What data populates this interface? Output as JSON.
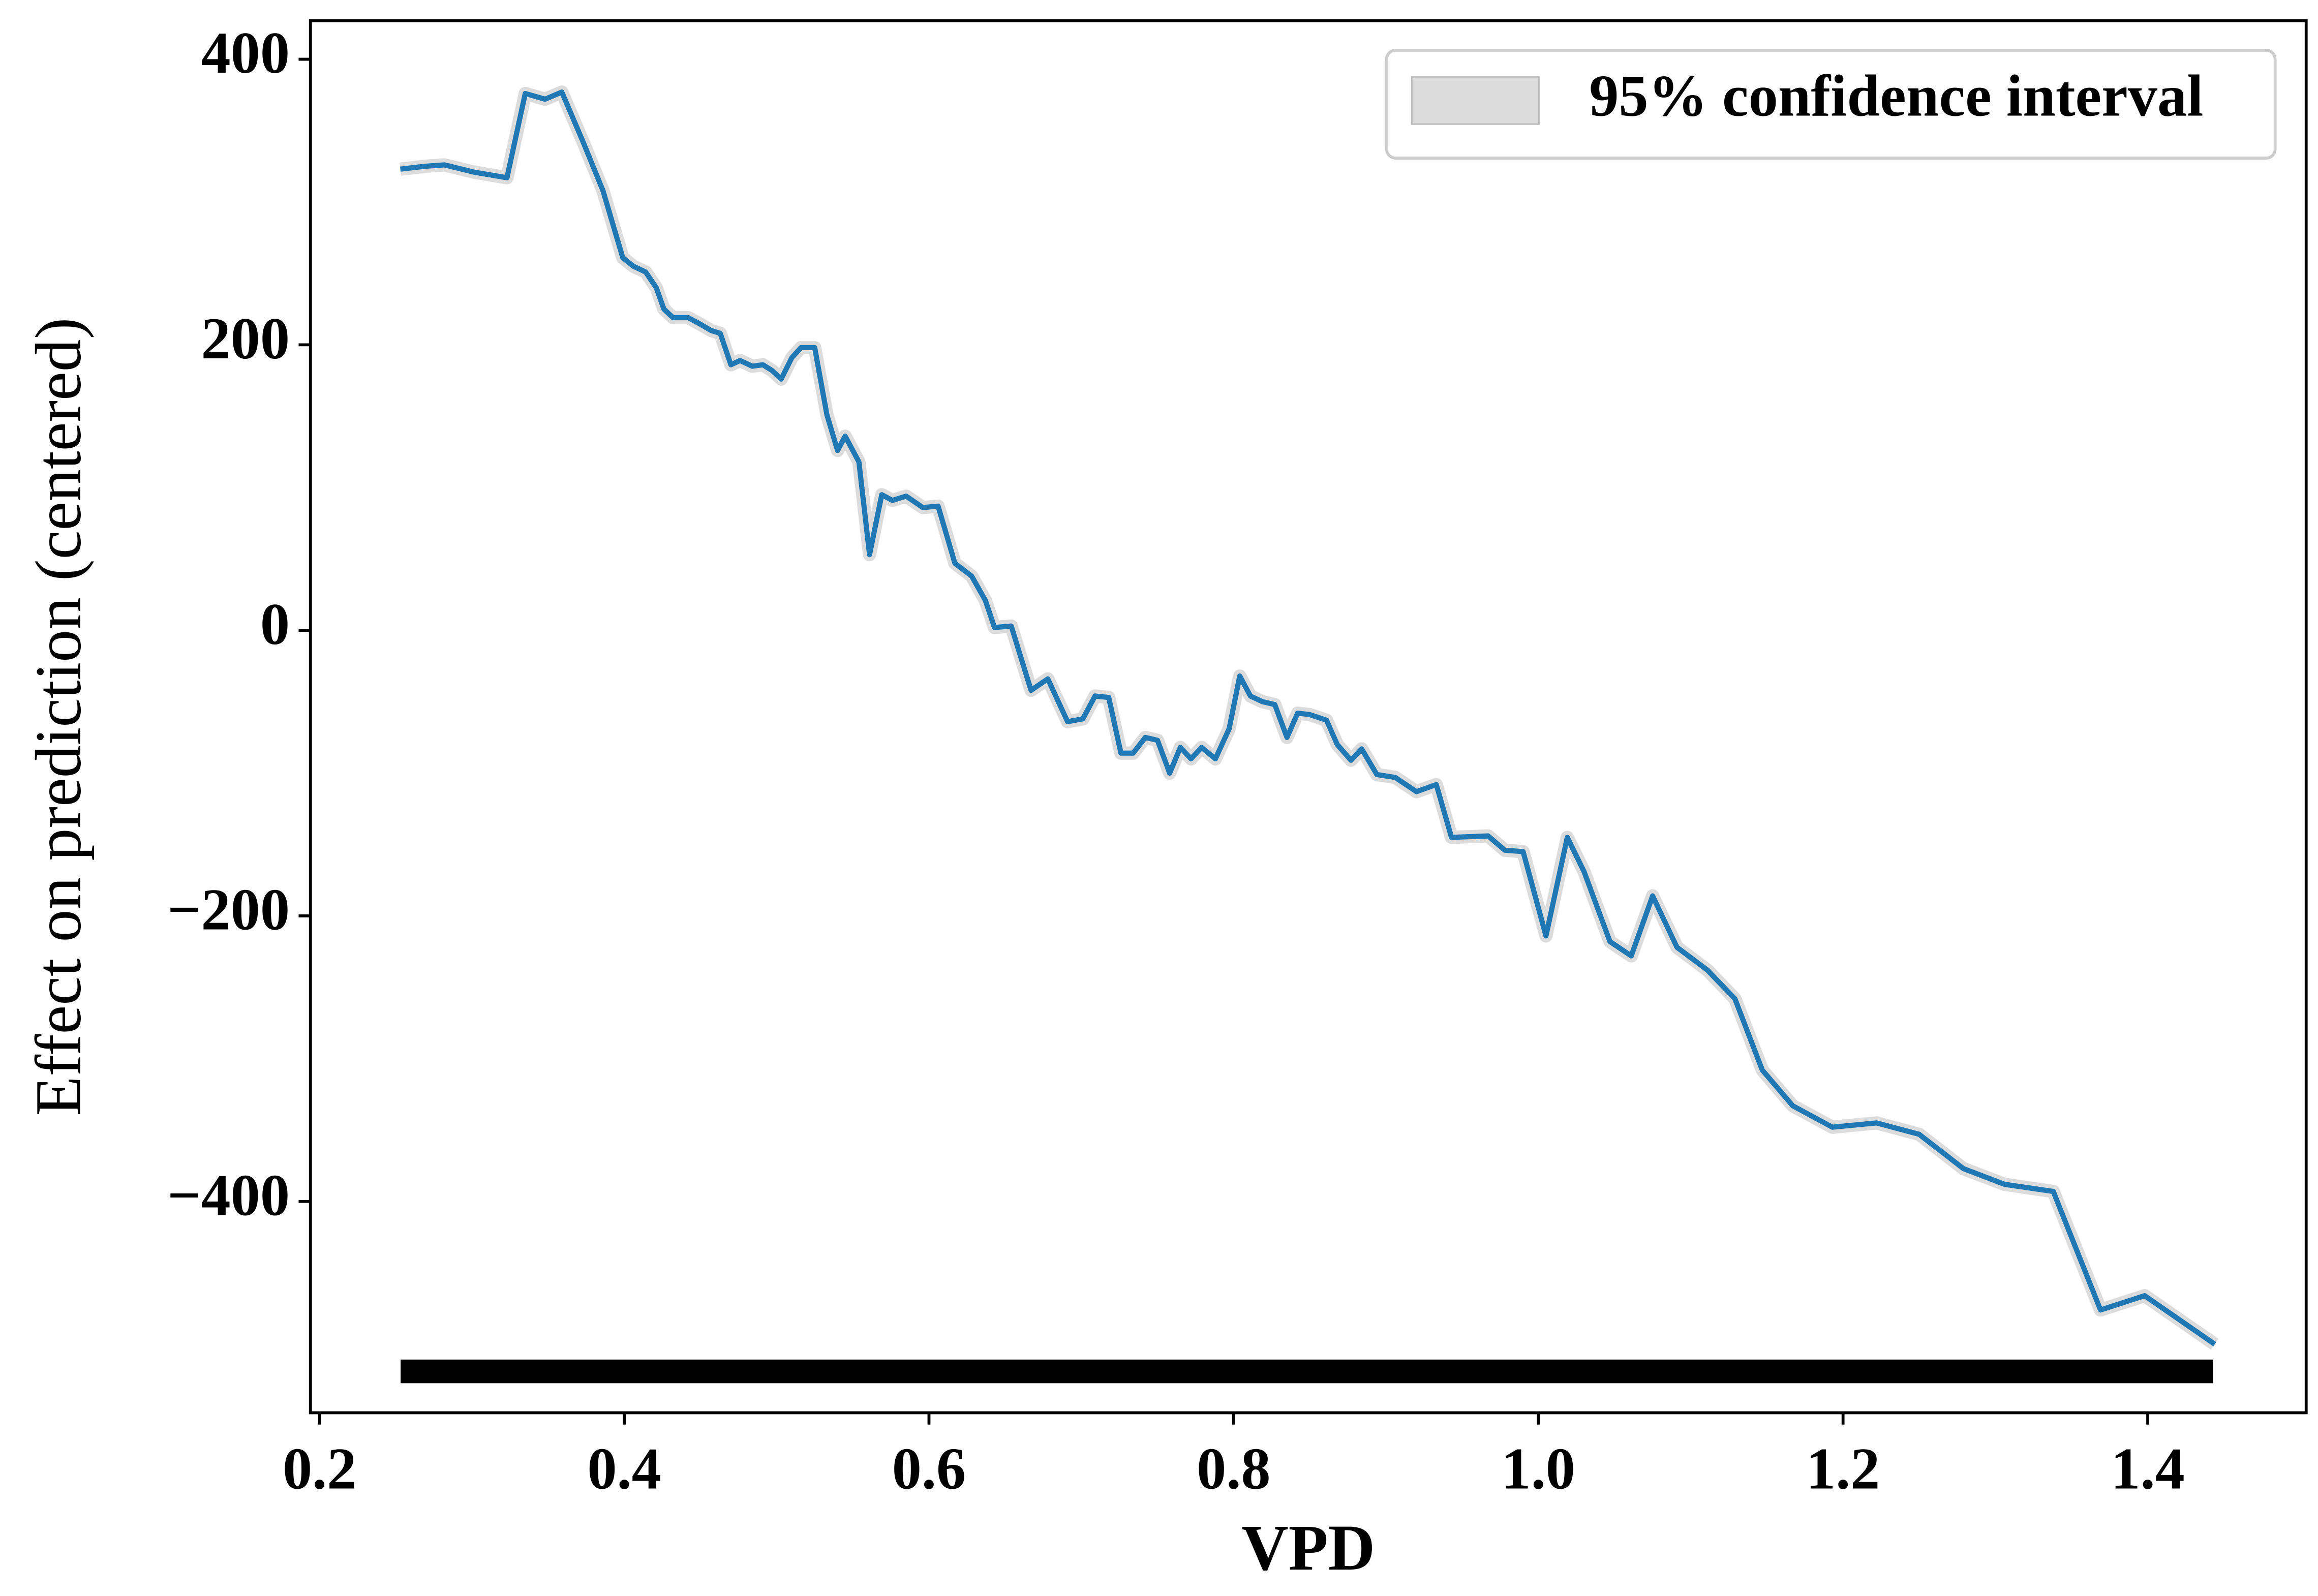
{
  "chart_data": {
    "type": "line",
    "xlabel": "VPD",
    "ylabel": "Effect on prediction (centered)",
    "xlim": [
      0.194,
      1.504
    ],
    "ylim": [
      -548,
      427
    ],
    "xticks": [
      0.2,
      0.4,
      0.6,
      0.8,
      {
        "value": 1,
        "label": "1.0"
      },
      1.2,
      1.4
    ],
    "yticks": [
      {
        "value": -400,
        "label": "−400"
      },
      {
        "value": -200,
        "label": "−200"
      },
      0,
      200,
      400
    ],
    "band": {
      "name": "95% confidence interval",
      "color": "#dcdcdc"
    },
    "series": [
      {
        "color": "#1f77b4",
        "x": [
          0.253,
          0.269,
          0.282,
          0.301,
          0.323,
          0.335,
          0.348,
          0.359,
          0.373,
          0.386,
          0.399,
          0.406,
          0.414,
          0.421,
          0.426,
          0.432,
          0.442,
          0.449,
          0.457,
          0.463,
          0.47,
          0.476,
          0.484,
          0.491,
          0.497,
          0.503,
          0.51,
          0.516,
          0.525,
          0.533,
          0.54,
          0.545,
          0.554,
          0.561,
          0.569,
          0.576,
          0.585,
          0.596,
          0.606,
          0.617,
          0.628,
          0.637,
          0.643,
          0.654,
          0.667,
          0.678,
          0.691,
          0.701,
          0.709,
          0.718,
          0.726,
          0.734,
          0.742,
          0.75,
          0.758,
          0.765,
          0.772,
          0.779,
          0.788,
          0.797,
          0.804,
          0.811,
          0.819,
          0.827,
          0.835,
          0.842,
          0.85,
          0.861,
          0.868,
          0.877,
          0.884,
          0.894,
          0.906,
          0.92,
          0.933,
          0.943,
          0.967,
          0.978,
          0.99,
          1.005,
          1.019,
          1.03,
          1.047,
          1.061,
          1.075,
          1.091,
          1.111,
          1.129,
          1.147,
          1.167,
          1.193,
          1.222,
          1.25,
          1.279,
          1.306,
          1.338,
          1.369,
          1.398,
          1.444
        ],
        "values": [
          323,
          325,
          326,
          321,
          317,
          376,
          372,
          377,
          342,
          308,
          261,
          255,
          251,
          240,
          225,
          219,
          219,
          215,
          210,
          208,
          186,
          189,
          185,
          186,
          182,
          176,
          191,
          198,
          198,
          151,
          126,
          136,
          118,
          53,
          95,
          91,
          94,
          86,
          87,
          47,
          38,
          21,
          2,
          3,
          -42,
          -34,
          -64,
          -62,
          -46,
          -47,
          -86,
          -86,
          -75,
          -77,
          -100,
          -82,
          -90,
          -82,
          -90,
          -69,
          -32,
          -46,
          -50,
          -52,
          -75,
          -58,
          -59,
          -63,
          -80,
          -91,
          -83,
          -101,
          -103,
          -113,
          -108,
          -145,
          -144,
          -154,
          -155,
          -214,
          -145,
          -169,
          -218,
          -228,
          -186,
          -222,
          -238,
          -258,
          -308,
          -333,
          -348,
          -345,
          -353,
          -377,
          -388,
          -393,
          -476,
          -466,
          -500
        ]
      }
    ]
  }
}
